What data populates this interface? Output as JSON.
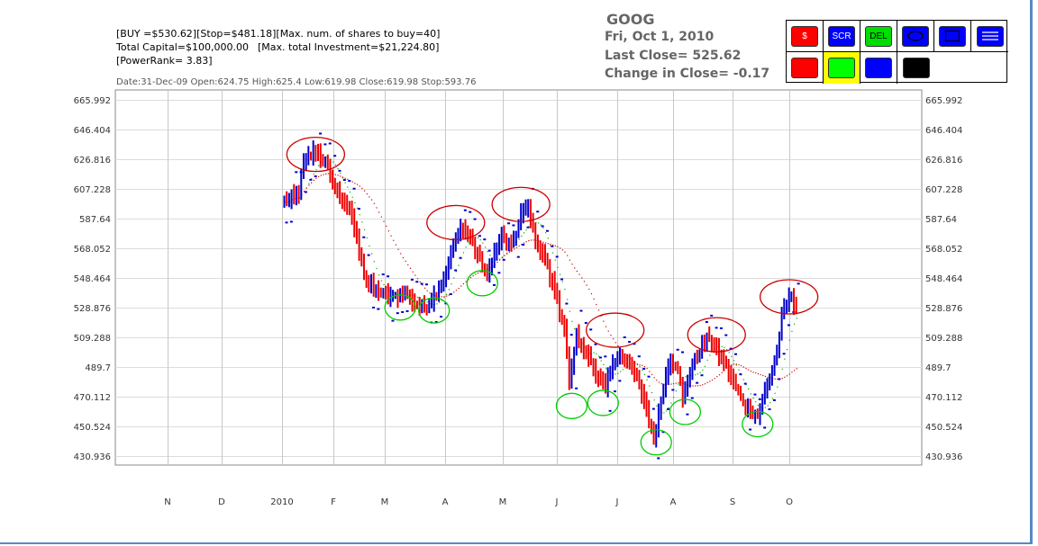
{
  "info": {
    "line1": "[BUY =$530.62][Stop=$481.18][Max. num. of shares to buy=40]",
    "line2a": "Total Capital=$100,000.00",
    "line2b": "[Max. total Investment=$21,224.80]",
    "line3": "[PowerRank= 3.83]",
    "dateline": "Date:31-Dec-09 Open:624.75 High:625.4 Low:619.98 Close:619.98 Stop:593.76"
  },
  "header": {
    "symbol": "GOOG",
    "date": "Fri, Oct 1, 2010",
    "last_close": "Last Close=  525.62",
    "change": "Change in Close=  -0.17"
  },
  "toolbar": {
    "buttons": [
      {
        "label": "$",
        "color": "#ff0000",
        "text_color": "#ffffff"
      },
      {
        "label": "SCR",
        "color": "#0000ff",
        "text_color": "#ffffff"
      },
      {
        "label": "DEL",
        "color": "#00dd00",
        "text_color": "#000000"
      },
      {
        "label": "",
        "color": "#0000ff",
        "icon": "ellipse-icon"
      },
      {
        "label": "",
        "color": "#0000ff",
        "icon": "rectangle-icon"
      },
      {
        "label": "",
        "color": "#0000ff",
        "icon": "lines-icon"
      }
    ],
    "swatches": [
      "#ff0000",
      "#00ff00",
      "#0000ff",
      "#000000"
    ]
  },
  "chart_data": {
    "type": "bar",
    "title": "",
    "xlabel": "",
    "ylabel": "",
    "y_ticks": [
      "665.992",
      "646.404",
      "626.816",
      "607.228",
      "587.64",
      "568.052",
      "548.464",
      "528.876",
      "509.288",
      "489.7",
      "470.112",
      "450.524",
      "430.936"
    ],
    "ylim": [
      430.936,
      665.992
    ],
    "x_ticks": [
      "N",
      "D",
      "2010",
      "F",
      "M",
      "A",
      "M",
      "J",
      "J",
      "A",
      "S",
      "O"
    ],
    "grid": true,
    "colors": {
      "up": "#0000cc",
      "down": "#ee0000",
      "ma_fast": "#00aa00",
      "ma_slow": "#cc0000",
      "circle_high": "#cc0000",
      "circle_low": "#00cc00"
    },
    "anchors": [
      [
        14,
        598
      ],
      [
        20,
        604
      ],
      [
        22,
        624
      ],
      [
        27,
        633
      ],
      [
        31,
        624
      ],
      [
        34,
        612
      ],
      [
        38,
        600
      ],
      [
        42,
        588
      ],
      [
        46,
        560
      ],
      [
        48,
        545
      ],
      [
        54,
        538
      ],
      [
        59,
        535
      ],
      [
        64,
        540
      ],
      [
        68,
        532
      ],
      [
        72,
        528
      ],
      [
        76,
        536
      ],
      [
        80,
        548
      ],
      [
        84,
        570
      ],
      [
        88,
        583
      ],
      [
        92,
        572
      ],
      [
        95,
        560
      ],
      [
        98,
        550
      ],
      [
        101,
        566
      ],
      [
        104,
        575
      ],
      [
        108,
        568
      ],
      [
        112,
        590
      ],
      [
        115,
        596
      ],
      [
        118,
        573
      ],
      [
        122,
        560
      ],
      [
        126,
        540
      ],
      [
        130,
        515
      ],
      [
        132,
        478
      ],
      [
        135,
        510
      ],
      [
        139,
        500
      ],
      [
        143,
        484
      ],
      [
        147,
        478
      ],
      [
        150,
        492
      ],
      [
        154,
        497
      ],
      [
        158,
        489
      ],
      [
        161,
        478
      ],
      [
        164,
        460
      ],
      [
        167,
        442
      ],
      [
        169,
        458
      ],
      [
        171,
        478
      ],
      [
        174,
        495
      ],
      [
        177,
        489
      ],
      [
        179,
        468
      ],
      [
        182,
        488
      ],
      [
        186,
        500
      ],
      [
        190,
        510
      ],
      [
        194,
        498
      ],
      [
        198,
        487
      ],
      [
        202,
        472
      ],
      [
        206,
        462
      ],
      [
        210,
        458
      ],
      [
        214,
        478
      ],
      [
        218,
        500
      ],
      [
        220,
        522
      ],
      [
        223,
        536
      ],
      [
        226,
        530
      ]
    ],
    "circles": [
      {
        "t": 27,
        "v": 630,
        "color": "high"
      },
      {
        "t": 85,
        "v": 585,
        "color": "high"
      },
      {
        "t": 112,
        "v": 597,
        "color": "high"
      },
      {
        "t": 151,
        "v": 514,
        "color": "high"
      },
      {
        "t": 193,
        "v": 511,
        "color": "high"
      },
      {
        "t": 223,
        "v": 536,
        "color": "high"
      },
      {
        "t": 62,
        "v": 529,
        "color": "low"
      },
      {
        "t": 76,
        "v": 527,
        "color": "low"
      },
      {
        "t": 96,
        "v": 545,
        "color": "low"
      },
      {
        "t": 133,
        "v": 464,
        "color": "low"
      },
      {
        "t": 146,
        "v": 466,
        "color": "low"
      },
      {
        "t": 168,
        "v": 440,
        "color": "low"
      },
      {
        "t": 180,
        "v": 460,
        "color": "low"
      },
      {
        "t": 210,
        "v": 452,
        "color": "low"
      }
    ]
  }
}
